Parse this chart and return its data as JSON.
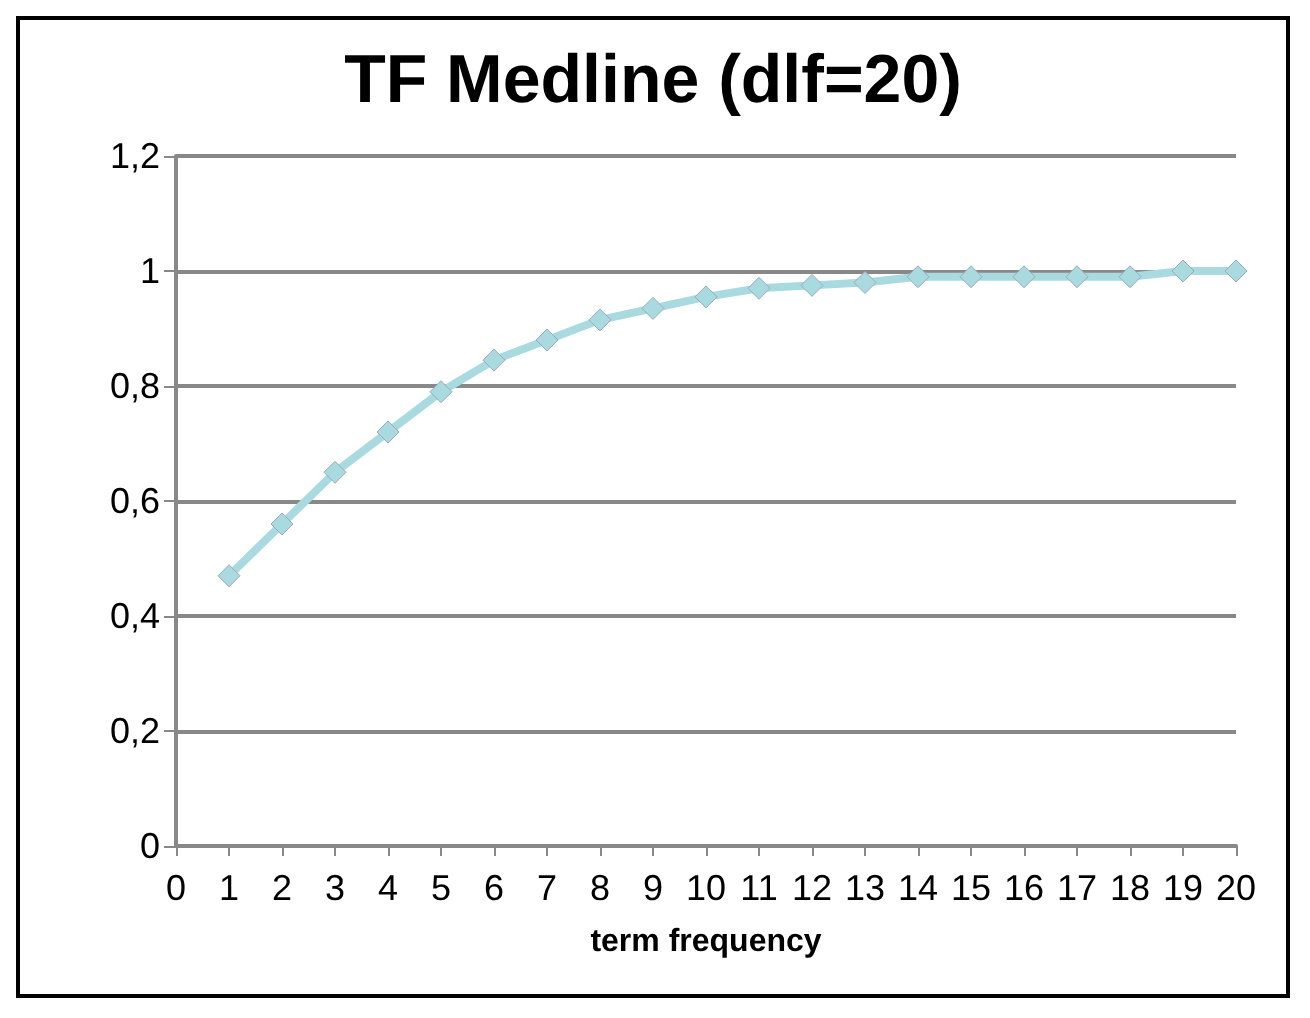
{
  "chart_data": {
    "type": "line",
    "title": "TF Medline (dlf=20)",
    "xlabel": "term frequency",
    "x": [
      1,
      2,
      3,
      4,
      5,
      6,
      7,
      8,
      9,
      10,
      11,
      12,
      13,
      14,
      15,
      16,
      17,
      18,
      19,
      20
    ],
    "series": [
      {
        "color": "#a8dadf",
        "values": [
          0.47,
          0.56,
          0.65,
          0.72,
          0.79,
          0.845,
          0.88,
          0.915,
          0.935,
          0.955,
          0.97,
          0.975,
          0.98,
          0.99,
          0.99,
          0.99,
          0.99,
          0.99,
          1.0,
          1.0
        ]
      }
    ],
    "xlim": [
      0,
      20
    ],
    "xticks": [
      0,
      1,
      2,
      3,
      4,
      5,
      6,
      7,
      8,
      9,
      10,
      11,
      12,
      13,
      14,
      15,
      16,
      17,
      18,
      19,
      20
    ],
    "ylim": [
      0,
      1.2
    ],
    "yticks": [
      0,
      {
        "value": 0.2,
        "label": "0,2"
      },
      {
        "value": 0.4,
        "label": "0,4"
      },
      {
        "value": 0.6,
        "label": "0,6"
      },
      {
        "value": 0.8,
        "label": "0,8"
      },
      1,
      {
        "value": 1.2,
        "label": "1,2"
      }
    ],
    "grid": "y",
    "marker": "diamond",
    "line_style": "solid"
  }
}
